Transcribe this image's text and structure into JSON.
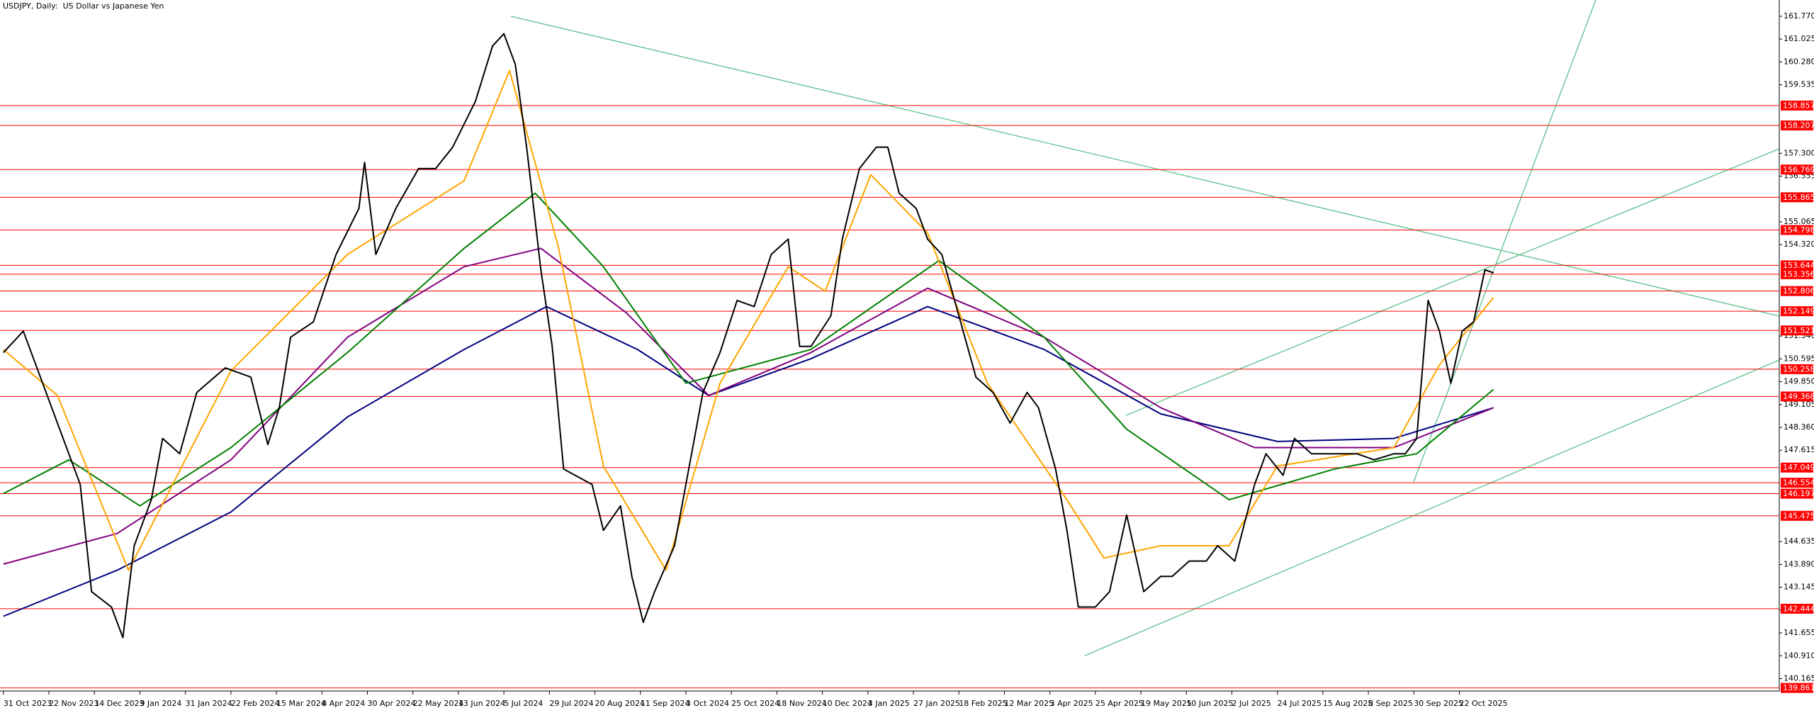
{
  "chart_data": {
    "type": "line",
    "title": "USDJPY, Daily:  US Dollar vs Japanese Yen",
    "xlim": [
      -1.2,
      624.5
    ],
    "ylim": [
      139.76,
      162.3
    ],
    "xticks": [
      {
        "value": 0,
        "label": "31 Oct 2023"
      },
      {
        "value": 16,
        "label": "22 Nov 2023"
      },
      {
        "value": 32,
        "label": "14 Dec 2023"
      },
      {
        "value": 48,
        "label": "9 Jan 2024"
      },
      {
        "value": 64,
        "label": "31 Jan 2024"
      },
      {
        "value": 80,
        "label": "22 Feb 2024"
      },
      {
        "value": 96,
        "label": "15 Mar 2024"
      },
      {
        "value": 112,
        "label": "8 Apr 2024"
      },
      {
        "value": 128,
        "label": "30 Apr 2024"
      },
      {
        "value": 144,
        "label": "22 May 2024"
      },
      {
        "value": 160,
        "label": "13 Jun 2024"
      },
      {
        "value": 176,
        "label": "5 Jul 2024"
      },
      {
        "value": 192,
        "label": "29 Jul 2024"
      },
      {
        "value": 208,
        "label": "20 Aug 2024"
      },
      {
        "value": 224,
        "label": "11 Sep 2024"
      },
      {
        "value": 240,
        "label": "3 Oct 2024"
      },
      {
        "value": 256,
        "label": "25 Oct 2024"
      },
      {
        "value": 272,
        "label": "18 Nov 2024"
      },
      {
        "value": 288,
        "label": "10 Dec 2024"
      },
      {
        "value": 304,
        "label": "3 Jan 2025"
      },
      {
        "value": 320,
        "label": "27 Jan 2025"
      },
      {
        "value": 336,
        "label": "18 Feb 2025"
      },
      {
        "value": 352,
        "label": "12 Mar 2025"
      },
      {
        "value": 368,
        "label": "3 Apr 2025"
      },
      {
        "value": 384,
        "label": "25 Apr 2025"
      },
      {
        "value": 400,
        "label": "19 May 2025"
      },
      {
        "value": 416,
        "label": "10 Jun 2025"
      },
      {
        "value": 432,
        "label": "2 Jul 2025"
      },
      {
        "value": 448,
        "label": "24 Jul 2025"
      },
      {
        "value": 464,
        "label": "15 Aug 2025"
      },
      {
        "value": 480,
        "label": "8 Sep 2025"
      },
      {
        "value": 496,
        "label": "30 Sep 2025"
      },
      {
        "value": 512,
        "label": "22 Oct 2025"
      }
    ],
    "yticks": [
      {
        "value": 161.77,
        "label": "161.770"
      },
      {
        "value": 161.025,
        "label": "161.025"
      },
      {
        "value": 160.28,
        "label": "160.280"
      },
      {
        "value": 159.535,
        "label": "159.535"
      },
      {
        "value": 157.3,
        "label": "157.300"
      },
      {
        "value": 156.555,
        "label": "156.555"
      },
      {
        "value": 155.065,
        "label": "155.065"
      },
      {
        "value": 154.32,
        "label": "154.320"
      },
      {
        "value": 151.34,
        "label": "151.340"
      },
      {
        "value": 150.595,
        "label": "150.595"
      },
      {
        "value": 149.85,
        "label": "149.850"
      },
      {
        "value": 149.105,
        "label": "149.105"
      },
      {
        "value": 148.36,
        "label": "148.360"
      },
      {
        "value": 147.615,
        "label": "147.615"
      },
      {
        "value": 144.635,
        "label": "144.635"
      },
      {
        "value": 143.89,
        "label": "143.890"
      },
      {
        "value": 143.145,
        "label": "143.145"
      },
      {
        "value": 142.4,
        "label": "142.400"
      },
      {
        "value": 141.655,
        "label": "141.655"
      },
      {
        "value": 140.91,
        "label": "140.910"
      },
      {
        "value": 140.165,
        "label": "140.165"
      }
    ],
    "levels": [
      158.857,
      158.207,
      156.769,
      155.865,
      154.798,
      153.644,
      153.356,
      152.806,
      152.149,
      151.521,
      150.258,
      149.368,
      147.049,
      146.554,
      146.197,
      145.475,
      142.444,
      139.861
    ],
    "level_color": "#ff0000",
    "series": [
      {
        "color": "#000080",
        "x": [
          0,
          40,
          80,
          121,
          162,
          191,
          223,
          248,
          284,
          325,
          366,
          407,
          448,
          489,
          524
        ],
        "values": [
          142.2,
          143.7,
          145.6,
          148.7,
          150.9,
          152.3,
          150.9,
          149.4,
          150.6,
          152.3,
          150.9,
          148.8,
          147.9,
          148.0,
          149.0
        ]
      },
      {
        "color": "#800080",
        "x": [
          0,
          40,
          80,
          121,
          162,
          189,
          219,
          248,
          284,
          325,
          366,
          407,
          440,
          489,
          524
        ],
        "values": [
          143.9,
          144.9,
          147.3,
          151.3,
          153.6,
          154.2,
          152.1,
          149.4,
          150.8,
          152.9,
          151.3,
          149.0,
          147.7,
          147.7,
          149.0
        ]
      },
      {
        "color": "#008000",
        "x": [
          0,
          23,
          48,
          80,
          121,
          162,
          187,
          211,
          240,
          284,
          329,
          366,
          395,
          431,
          468,
          497,
          524
        ],
        "values": [
          146.2,
          147.3,
          145.8,
          147.7,
          150.8,
          154.2,
          156.0,
          153.6,
          149.8,
          150.9,
          153.8,
          151.3,
          148.3,
          146.0,
          147.0,
          147.5,
          149.6
        ]
      },
      {
        "color": "#ffa500",
        "x": [
          0,
          19,
          44,
          80,
          121,
          162,
          178,
          195,
          211,
          233,
          252,
          276,
          289,
          305,
          325,
          346,
          374,
          387,
          407,
          431,
          448,
          489,
          505,
          524
        ],
        "values": [
          150.9,
          149.4,
          143.7,
          150.2,
          154.0,
          156.4,
          160.0,
          154.3,
          147.1,
          143.7,
          149.8,
          153.6,
          152.8,
          156.6,
          154.7,
          149.8,
          146.0,
          144.1,
          144.5,
          144.5,
          147.1,
          147.7,
          150.4,
          152.6
        ]
      },
      {
        "color": "#000000",
        "x": [
          0,
          7,
          15,
          23,
          27,
          31,
          38,
          42,
          46,
          52,
          56,
          62,
          68,
          78,
          87,
          93,
          97,
          101,
          109,
          117,
          125,
          127,
          131,
          138,
          146,
          152,
          158,
          166,
          172,
          176,
          180,
          184,
          189,
          193,
          197,
          201,
          207,
          211,
          217,
          221,
          225,
          229,
          236,
          242,
          246,
          252,
          258,
          264,
          270,
          276,
          280,
          284,
          291,
          295,
          301,
          307,
          311,
          315,
          321,
          325,
          330,
          336,
          342,
          348,
          354,
          360,
          364,
          370,
          374,
          378,
          384,
          389,
          395,
          401,
          407,
          411,
          417,
          423,
          427,
          433,
          440,
          444,
          450,
          454,
          460,
          466,
          472,
          476,
          482,
          489,
          493,
          497,
          501,
          505,
          509,
          513,
          517,
          521,
          524
        ],
        "values": [
          150.8,
          151.5,
          149.5,
          147.5,
          146.5,
          143.0,
          142.5,
          141.5,
          144.5,
          146.0,
          148.0,
          147.5,
          149.5,
          150.3,
          150.0,
          147.8,
          149.0,
          151.3,
          151.8,
          154.0,
          155.5,
          157.0,
          154.0,
          155.5,
          156.8,
          156.8,
          157.5,
          159.0,
          160.8,
          161.2,
          160.2,
          157.5,
          153.5,
          151.0,
          147.0,
          146.8,
          146.5,
          145.0,
          145.8,
          143.5,
          142.0,
          143.0,
          144.5,
          147.5,
          149.5,
          150.8,
          152.5,
          152.3,
          154.0,
          154.5,
          151.0,
          151.0,
          152.0,
          154.5,
          156.8,
          157.5,
          157.5,
          156.0,
          155.5,
          154.5,
          154.0,
          152.0,
          150.0,
          149.5,
          148.5,
          149.5,
          149.0,
          147.0,
          145.0,
          142.5,
          142.5,
          143.0,
          145.5,
          143.0,
          143.5,
          143.5,
          144.0,
          144.0,
          144.5,
          144.0,
          146.5,
          147.5,
          146.8,
          148.0,
          147.5,
          147.5,
          147.5,
          147.5,
          147.3,
          147.5,
          147.5,
          148.0,
          152.5,
          151.5,
          149.8,
          151.5,
          151.8,
          153.5,
          153.4
        ]
      }
    ]
  }
}
